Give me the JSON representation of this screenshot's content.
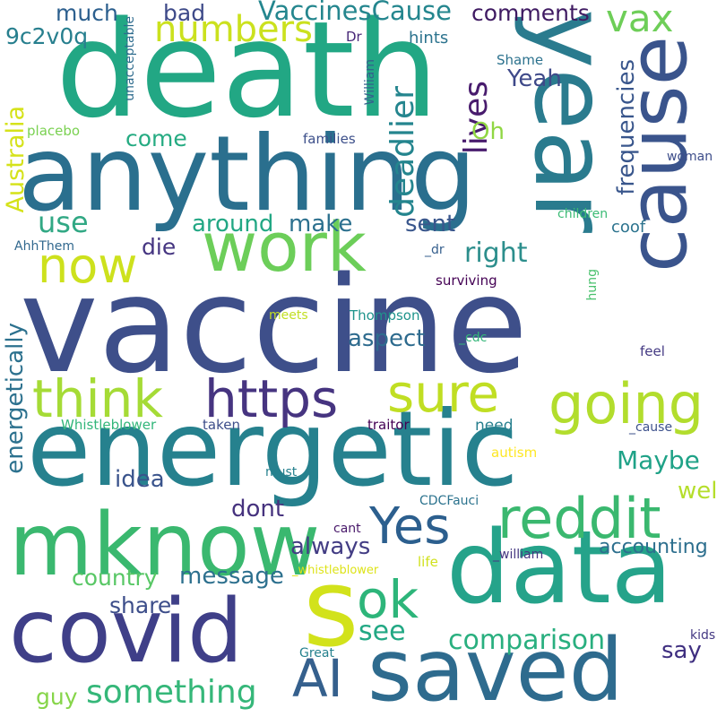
{
  "background": "#ffffff",
  "palette": [
    "#440154",
    "#3b528b",
    "#21918c",
    "#5ec962",
    "#fde725"
  ],
  "words": [
    {
      "id": "vaccine",
      "text": "vaccine",
      "color": "#3e4f8a"
    },
    {
      "id": "death",
      "text": "death",
      "color": "#22a784"
    },
    {
      "id": "anything",
      "text": "anything",
      "color": "#2a6f8e"
    },
    {
      "id": "energetic",
      "text": "energetic",
      "color": "#26818e"
    },
    {
      "id": "year",
      "text": "year",
      "color": "#2a7b8e"
    },
    {
      "id": "cause",
      "text": "cause",
      "color": "#3a548c"
    },
    {
      "id": "mknow",
      "text": "mknow",
      "color": "#3ab86f"
    },
    {
      "id": "data",
      "text": "data",
      "color": "#25a38a"
    },
    {
      "id": "covid",
      "text": "covid",
      "color": "#3f3f88"
    },
    {
      "id": "saved",
      "text": "saved",
      "color": "#2e6b8e"
    },
    {
      "id": "work",
      "text": "work",
      "color": "#6cce59"
    },
    {
      "id": "s",
      "text": "s",
      "color": "#d2e21b"
    },
    {
      "id": "https",
      "text": "https",
      "color": "#463480"
    },
    {
      "id": "going",
      "text": "going",
      "color": "#b2dd2d"
    },
    {
      "id": "sure",
      "text": "sure",
      "color": "#c0de23"
    },
    {
      "id": "think",
      "text": "think",
      "color": "#a5db36"
    },
    {
      "id": "reddit",
      "text": "reddit",
      "color": "#3ab86f"
    },
    {
      "id": "yes",
      "text": "Yes",
      "color": "#2c5f8e"
    },
    {
      "id": "ok",
      "text": "ok",
      "color": "#2db57a"
    },
    {
      "id": "now",
      "text": "now",
      "color": "#cde11d"
    },
    {
      "id": "ai",
      "text": "AI",
      "color": "#35608d"
    },
    {
      "id": "numbers",
      "text": "numbers",
      "color": "#cbe11e"
    },
    {
      "id": "vaccinescause",
      "text": "VaccinesCause",
      "color": "#24868e"
    },
    {
      "id": "vax",
      "text": "vax",
      "color": "#6ece58"
    },
    {
      "id": "comments",
      "text": "comments",
      "color": "#3f1a62"
    },
    {
      "id": "much",
      "text": "much",
      "color": "#2c5f8e"
    },
    {
      "id": "bad",
      "text": "bad",
      "color": "#3e4a89"
    },
    {
      "id": "code",
      "text": "9c2v0q",
      "color": "#277f8e"
    },
    {
      "id": "use",
      "text": "use",
      "color": "#31a884"
    },
    {
      "id": "come",
      "text": "come",
      "color": "#25ab82"
    },
    {
      "id": "around",
      "text": "around",
      "color": "#22a784"
    },
    {
      "id": "make",
      "text": "make",
      "color": "#2c708e"
    },
    {
      "id": "die",
      "text": "die",
      "color": "#453581"
    },
    {
      "id": "sent",
      "text": "sent",
      "color": "#39568c"
    },
    {
      "id": "right",
      "text": "right",
      "color": "#2c8e8c"
    },
    {
      "id": "lives",
      "text": "lives",
      "color": "#481b6d"
    },
    {
      "id": "deadlier",
      "text": "deadlier",
      "color": "#24858e"
    },
    {
      "id": "yeah",
      "text": "Yeah",
      "color": "#3e4989"
    },
    {
      "id": "oh",
      "text": "Oh",
      "color": "#90d743"
    },
    {
      "id": "frequencies",
      "text": "frequencies",
      "color": "#39568c"
    },
    {
      "id": "australia",
      "text": "Australia",
      "color": "#d5e21a"
    },
    {
      "id": "energetically",
      "text": "energetically",
      "color": "#2c718e"
    },
    {
      "id": "aspect",
      "text": "aspect",
      "color": "#2e6b8e"
    },
    {
      "id": "maybe",
      "text": "Maybe",
      "color": "#1fa287"
    },
    {
      "id": "well",
      "text": "well",
      "color": "#b5de2b"
    },
    {
      "id": "idea",
      "text": "idea",
      "color": "#3a548c"
    },
    {
      "id": "dont",
      "text": "dont",
      "color": "#46327e"
    },
    {
      "id": "always",
      "text": "always",
      "color": "#433d84"
    },
    {
      "id": "country",
      "text": "country",
      "color": "#58c765"
    },
    {
      "id": "message",
      "text": "message",
      "color": "#2d708e"
    },
    {
      "id": "accounting",
      "text": "accounting",
      "color": "#2d6f8e"
    },
    {
      "id": "share",
      "text": "share",
      "color": "#3d4e8a"
    },
    {
      "id": "see",
      "text": "see",
      "color": "#22a884"
    },
    {
      "id": "comparison",
      "text": "comparison",
      "color": "#29af7f"
    },
    {
      "id": "say",
      "text": "say",
      "color": "#3f2f80"
    },
    {
      "id": "guy",
      "text": "guy",
      "color": "#86d549"
    },
    {
      "id": "something",
      "text": "something",
      "color": "#35b779"
    },
    {
      "id": "coof",
      "text": "coof",
      "color": "#2c738e"
    },
    {
      "id": "hints",
      "text": "hints",
      "color": "#2c738e"
    },
    {
      "id": "dr",
      "text": "Dr",
      "color": "#482878"
    },
    {
      "id": "william",
      "text": "William",
      "color": "#34618d"
    },
    {
      "id": "shame",
      "text": "Shame",
      "color": "#2c728e"
    },
    {
      "id": "unacceptable",
      "text": "unacceptable",
      "color": "#2f6c8e"
    },
    {
      "id": "placebo",
      "text": "placebo",
      "color": "#7ad151"
    },
    {
      "id": "families",
      "text": "families",
      "color": "#3c4f8a"
    },
    {
      "id": "woman",
      "text": "woman",
      "color": "#3d4d8a"
    },
    {
      "id": "children",
      "text": "children",
      "color": "#3bbb75"
    },
    {
      "id": "ahhthem",
      "text": "AhhThem",
      "color": "#31688e"
    },
    {
      "id": "_dr",
      "text": "_dr",
      "color": "#355f8d"
    },
    {
      "id": "hung",
      "text": "hung",
      "color": "#4ac16d"
    },
    {
      "id": "surviving",
      "text": "surviving",
      "color": "#440154"
    },
    {
      "id": "meets",
      "text": "meets",
      "color": "#c2df23"
    },
    {
      "id": "thompson",
      "text": "Thompson",
      "color": "#1f948c"
    },
    {
      "id": "_cdc",
      "text": "_cdc",
      "color": "#34b679"
    },
    {
      "id": "feel",
      "text": "feel",
      "color": "#443a83"
    },
    {
      "id": "whistleblower",
      "text": "Whistleblower",
      "color": "#32b67a"
    },
    {
      "id": "taken",
      "text": "taken",
      "color": "#3d4e8a"
    },
    {
      "id": "traitor",
      "text": "traitor",
      "color": "#440154"
    },
    {
      "id": "need",
      "text": "need",
      "color": "#277f8e"
    },
    {
      "id": "_cause",
      "text": "_cause",
      "color": "#3c508b"
    },
    {
      "id": "autism",
      "text": "autism",
      "color": "#fde725"
    },
    {
      "id": "must",
      "text": "must",
      "color": "#26818e"
    },
    {
      "id": "cdcfauci",
      "text": "CDCFauci",
      "color": "#2c738e"
    },
    {
      "id": "cant",
      "text": "cant",
      "color": "#48186a"
    },
    {
      "id": "_whistleblower",
      "text": "_whistleblower",
      "color": "#dde318"
    },
    {
      "id": "life",
      "text": "life",
      "color": "#d0e11c"
    },
    {
      "id": "_william",
      "text": "_william",
      "color": "#453781"
    },
    {
      "id": "kids",
      "text": "kids",
      "color": "#443983"
    },
    {
      "id": "great",
      "text": "Great",
      "color": "#26828e"
    }
  ]
}
